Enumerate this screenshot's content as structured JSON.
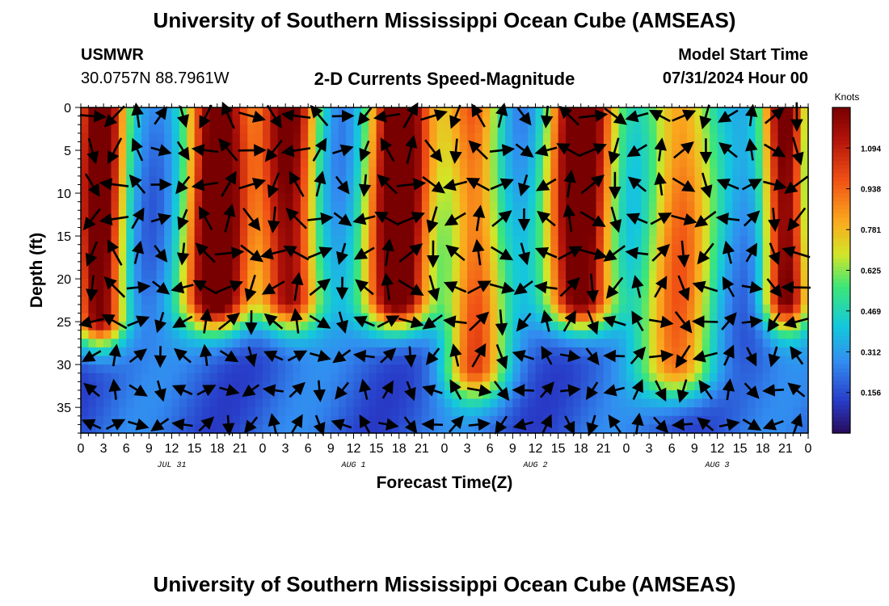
{
  "header": {
    "title": "University of Southern Mississippi Ocean Cube (AMSEAS)",
    "station": "USMWR",
    "coordinates": "30.0757N  88.7961W",
    "plot_title": "2-D Currents Speed-Magnitude",
    "model_start_label": "Model Start Time",
    "model_start_time": "07/31/2024 Hour 00"
  },
  "footer": {
    "title": "University of Southern Mississippi Ocean Cube (AMSEAS)"
  },
  "chart_data": {
    "type": "heatmap",
    "title": "2-D Currents Speed-Magnitude",
    "xlabel": "Forecast Time(Z)",
    "ylabel": "Depth (ft)",
    "xlim": [
      0,
      96
    ],
    "ylim": [
      0,
      38
    ],
    "x_ticks": [
      {
        "h": 0,
        "label": "0"
      },
      {
        "h": 3,
        "label": "3"
      },
      {
        "h": 6,
        "label": "6"
      },
      {
        "h": 9,
        "label": "9"
      },
      {
        "h": 12,
        "label": "12"
      },
      {
        "h": 15,
        "label": "15"
      },
      {
        "h": 18,
        "label": "18"
      },
      {
        "h": 21,
        "label": "21"
      },
      {
        "h": 24,
        "label": "0"
      },
      {
        "h": 27,
        "label": "3"
      },
      {
        "h": 30,
        "label": "6"
      },
      {
        "h": 33,
        "label": "9"
      },
      {
        "h": 36,
        "label": "12"
      },
      {
        "h": 39,
        "label": "15"
      },
      {
        "h": 42,
        "label": "18"
      },
      {
        "h": 45,
        "label": "21"
      },
      {
        "h": 48,
        "label": "0"
      },
      {
        "h": 51,
        "label": "3"
      },
      {
        "h": 54,
        "label": "6"
      },
      {
        "h": 57,
        "label": "9"
      },
      {
        "h": 60,
        "label": "12"
      },
      {
        "h": 63,
        "label": "15"
      },
      {
        "h": 66,
        "label": "18"
      },
      {
        "h": 69,
        "label": "21"
      },
      {
        "h": 72,
        "label": "0"
      },
      {
        "h": 75,
        "label": "3"
      },
      {
        "h": 78,
        "label": "6"
      },
      {
        "h": 81,
        "label": "9"
      },
      {
        "h": 84,
        "label": "12"
      },
      {
        "h": 87,
        "label": "15"
      },
      {
        "h": 90,
        "label": "18"
      },
      {
        "h": 93,
        "label": "21"
      },
      {
        "h": 96,
        "label": "0"
      }
    ],
    "date_labels": [
      {
        "h": 12,
        "label": "JUL 31"
      },
      {
        "h": 36,
        "label": "AUG 1"
      },
      {
        "h": 60,
        "label": "AUG 2"
      },
      {
        "h": 84,
        "label": "AUG 3"
      }
    ],
    "y_ticks": [
      0,
      5,
      10,
      15,
      20,
      25,
      30,
      35
    ],
    "colorbar": {
      "unit": "Knots",
      "min": 0.0,
      "max": 1.25,
      "tick_values": [
        1.094,
        0.938,
        0.781,
        0.625,
        0.469,
        0.312,
        0.156
      ],
      "tick_labels": [
        "1.094",
        "0.938",
        "0.781",
        "0.625",
        "0.469",
        "0.312",
        "0.156"
      ]
    },
    "speed_peaks": [
      {
        "h": 2.5,
        "speed": 1.15,
        "width": 3.5,
        "depth_extent": 24
      },
      {
        "h": 18,
        "speed": 1.2,
        "width": 4.5,
        "depth_extent": 22
      },
      {
        "h": 27.5,
        "speed": 1.05,
        "width": 4,
        "depth_extent": 22
      },
      {
        "h": 42,
        "speed": 1.2,
        "width": 4.5,
        "depth_extent": 22
      },
      {
        "h": 52,
        "speed": 0.75,
        "width": 4,
        "depth_extent": 30
      },
      {
        "h": 66,
        "speed": 1.2,
        "width": 4.5,
        "depth_extent": 22
      },
      {
        "h": 79,
        "speed": 0.7,
        "width": 5,
        "depth_extent": 30
      },
      {
        "h": 93,
        "speed": 1.1,
        "width": 3,
        "depth_extent": 22
      }
    ],
    "vector_hours": [
      0,
      3,
      6,
      9,
      12,
      15,
      18,
      21,
      24,
      27,
      30,
      33,
      36,
      39,
      42,
      45,
      48,
      51,
      54,
      57,
      60,
      63,
      66,
      69,
      72,
      75,
      78,
      81,
      84,
      87,
      90,
      93
    ],
    "vector_depths": [
      1,
      5,
      9,
      13,
      17,
      21,
      25,
      29,
      33,
      37
    ]
  }
}
